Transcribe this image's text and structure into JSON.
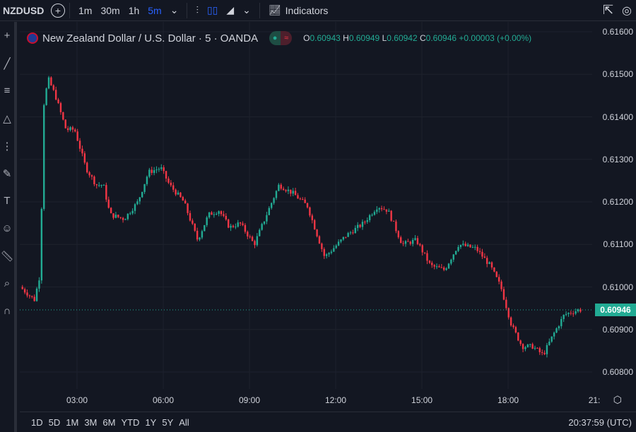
{
  "toolbar": {
    "symbol": "NZDUSD",
    "add": "+",
    "intervals": [
      "1m",
      "30m",
      "1h",
      "5m"
    ],
    "active_interval": "5m",
    "indicators": "Indicators"
  },
  "legend": {
    "title": "New Zealand Dollar / U.S. Dollar · 5 · OANDA",
    "o_label": "O",
    "o": "0.60943",
    "h_label": "H",
    "h": "0.60949",
    "l_label": "L",
    "l": "0.60942",
    "c_label": "C",
    "c": "0.60946",
    "change": "+0.00003 (+0.00%)"
  },
  "price_axis": {
    "labels": [
      "0.61600",
      "0.61500",
      "0.61400",
      "0.61300",
      "0.61200",
      "0.61100",
      "0.61000",
      "0.60900",
      "0.60800"
    ],
    "current": "0.60946"
  },
  "time_axis": {
    "labels": [
      "03:00",
      "06:00",
      "09:00",
      "12:00",
      "15:00",
      "18:00",
      "21:"
    ]
  },
  "ranges": [
    "1D",
    "5D",
    "1M",
    "3M",
    "6M",
    "YTD",
    "1Y",
    "5Y",
    "All"
  ],
  "clock": "20:37:59 (UTC)",
  "colors": {
    "up": "#22ab94",
    "down": "#f23645",
    "bg": "#131722",
    "accent": "#2962ff"
  },
  "chart_data": {
    "type": "candlestick",
    "interval_minutes": 5,
    "ylim": [
      0.6078,
      0.6162
    ],
    "current_price": 0.60946,
    "path_hours": [
      1.1,
      1.6,
      1.83,
      1.88,
      2.08,
      2.33,
      2.7,
      3.0,
      3.39,
      3.75,
      4.0,
      4.23,
      4.72,
      5.2,
      5.57,
      6.0,
      6.3,
      6.8,
      7.28,
      7.66,
      8.02,
      8.39,
      8.75,
      9.25,
      9.74,
      10.11,
      10.6,
      11.1,
      11.7,
      12.43,
      13.05,
      13.54,
      13.9,
      14.4,
      14.89,
      15.38,
      15.87,
      16.36,
      16.97,
      17.46,
      17.83,
      18.2,
      18.57,
      18.94,
      19.3,
      19.67,
      20.04,
      20.53
    ],
    "path_prices": [
      0.61,
      0.6097,
      0.6104,
      0.6141,
      0.6149,
      0.6145,
      0.6137,
      0.6137,
      0.6128,
      0.6124,
      0.6124,
      0.6117,
      0.6116,
      0.612,
      0.6127,
      0.6128,
      0.6124,
      0.612,
      0.6111,
      0.6117,
      0.6118,
      0.6114,
      0.6115,
      0.611,
      0.6118,
      0.6124,
      0.6122,
      0.6119,
      0.6107,
      0.6112,
      0.6115,
      0.6119,
      0.6118,
      0.611,
      0.6111,
      0.6105,
      0.6104,
      0.611,
      0.6109,
      0.6105,
      0.61,
      0.6091,
      0.6086,
      0.6086,
      0.6084,
      0.6089,
      0.60935,
      0.60946
    ]
  }
}
